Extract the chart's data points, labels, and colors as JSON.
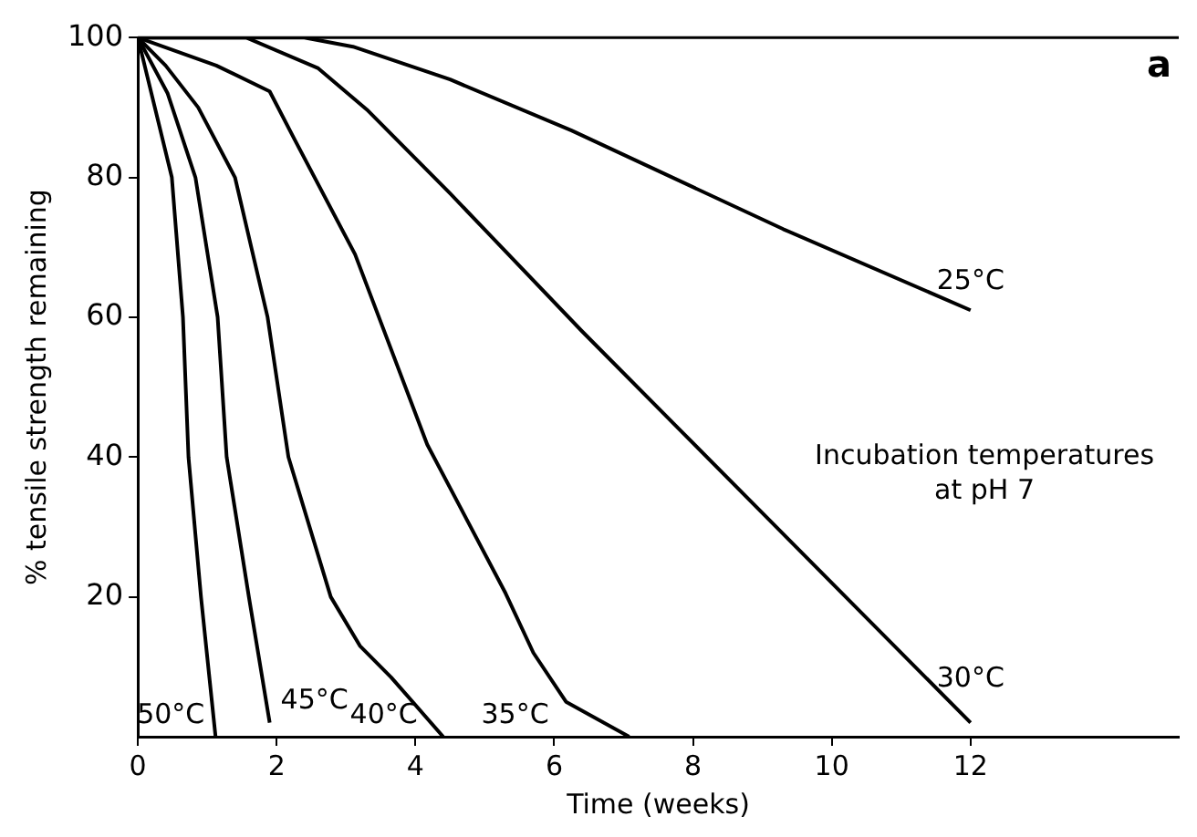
{
  "chart_data": {
    "type": "line",
    "xlabel": "Time (weeks)",
    "ylabel": "% tensile strength remaining",
    "xlim": [
      0,
      15
    ],
    "xticks": [
      {
        "value": 0,
        "label": "0"
      },
      2,
      4,
      6,
      8,
      10,
      12
    ],
    "ylim": [
      0,
      100
    ],
    "yticks": [
      20,
      40,
      60,
      80,
      100
    ],
    "grid": false,
    "legend": false,
    "marker": "none",
    "line_style": "solid",
    "annotations": [
      "a",
      "Incubation temperatures\nat pH 7"
    ],
    "series": [
      {
        "name": "50°C",
        "color": "#000000",
        "x": [
          0,
          0.49,
          0.65,
          0.73,
          0.91,
          1.12
        ],
        "values": [
          100,
          80,
          60,
          40,
          20,
          0
        ]
      },
      {
        "name": "45°C",
        "color": "#000000",
        "x": [
          0,
          0.43,
          0.83,
          1.15,
          1.28,
          1.6,
          1.9
        ],
        "values": [
          100,
          92,
          80,
          60,
          40,
          20,
          2
        ]
      },
      {
        "name": "40°C",
        "color": "#000000",
        "x": [
          0,
          0.4,
          0.87,
          1.4,
          1.87,
          2.17,
          2.78,
          3.2,
          3.65,
          4.4
        ],
        "values": [
          100,
          96,
          90,
          80,
          60,
          40,
          20,
          13,
          8.5,
          0
        ]
      },
      {
        "name": "35°C",
        "color": "#000000",
        "x": [
          0,
          1.13,
          1.9,
          2.26,
          3.13,
          4.17,
          5.3,
          5.7,
          6.17,
          7.08
        ],
        "values": [
          100,
          96,
          92.3,
          85.4,
          69,
          41.8,
          20.5,
          12,
          5,
          0
        ]
      },
      {
        "name": "30°C",
        "color": "#000000",
        "x": [
          0,
          1.56,
          2.6,
          3.3,
          4.5,
          6.4,
          7.8,
          12
        ],
        "values": [
          100,
          100,
          95.6,
          89.7,
          77.7,
          58,
          44,
          2
        ]
      },
      {
        "name": "25°C",
        "color": "#000000",
        "x": [
          0,
          2.4,
          3.1,
          4.5,
          6.25,
          9.3,
          12
        ],
        "values": [
          100,
          100,
          98.7,
          94,
          86.7,
          72.6,
          61
        ]
      }
    ]
  }
}
